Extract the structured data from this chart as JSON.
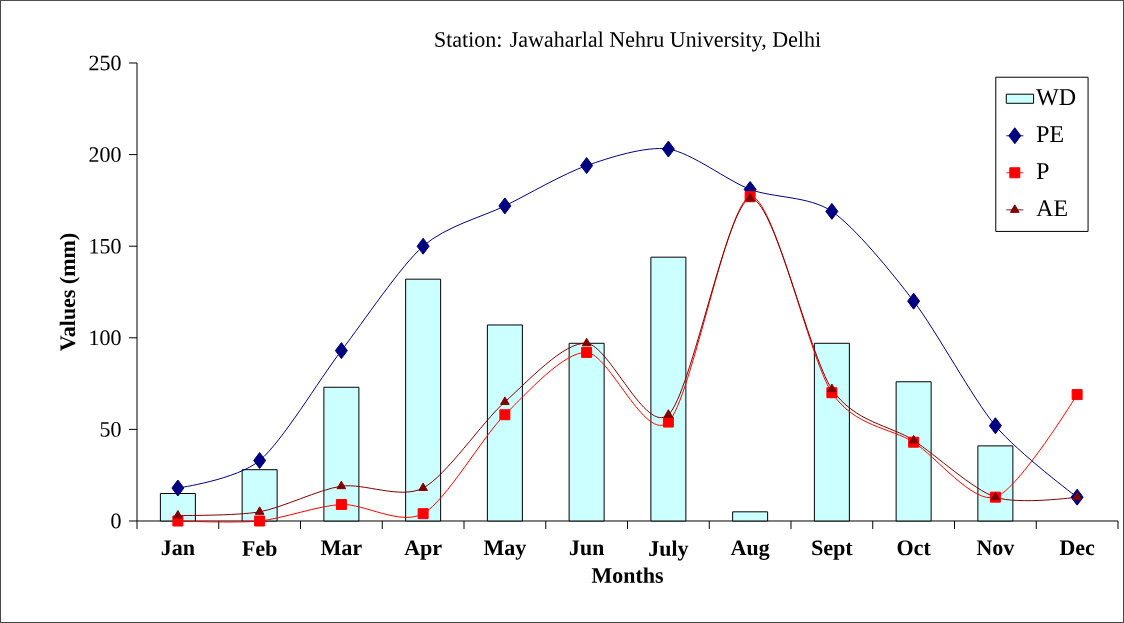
{
  "chart_data": {
    "type": "bar",
    "title": "Station: Jawaharlal Nehru University, Delhi",
    "xlabel": "Months",
    "ylabel": "Values (mm)",
    "categories": [
      "Jan",
      "Feb",
      "Mar",
      "Apr",
      "May",
      "Jun",
      "July",
      "Aug",
      "Sept",
      "Oct",
      "Nov",
      "Dec"
    ],
    "ylim": [
      0,
      250
    ],
    "yticks": [
      0,
      50,
      100,
      150,
      200,
      250
    ],
    "legend": "top right",
    "series": [
      {
        "name": "WD",
        "color": "#ccffff",
        "values": [
          15,
          28,
          73,
          132,
          107,
          97,
          144,
          5,
          97,
          76,
          41,
          null
        ]
      },
      {
        "name": "PE",
        "type": "line",
        "marker": "diamond",
        "color": "#000080",
        "values": [
          18,
          33,
          93,
          150,
          172,
          194,
          203,
          181,
          169,
          120,
          52,
          13
        ]
      },
      {
        "name": "P",
        "type": "line",
        "marker": "square",
        "color": "#ff0000",
        "values": [
          0,
          0,
          9,
          4,
          58,
          92,
          54,
          177,
          70,
          43,
          13,
          69
        ]
      },
      {
        "name": "AE",
        "type": "line",
        "marker": "triangle",
        "color": "#800000",
        "values": [
          3,
          5,
          19,
          18,
          65,
          97,
          58,
          176,
          72,
          44,
          13,
          13
        ]
      }
    ]
  }
}
